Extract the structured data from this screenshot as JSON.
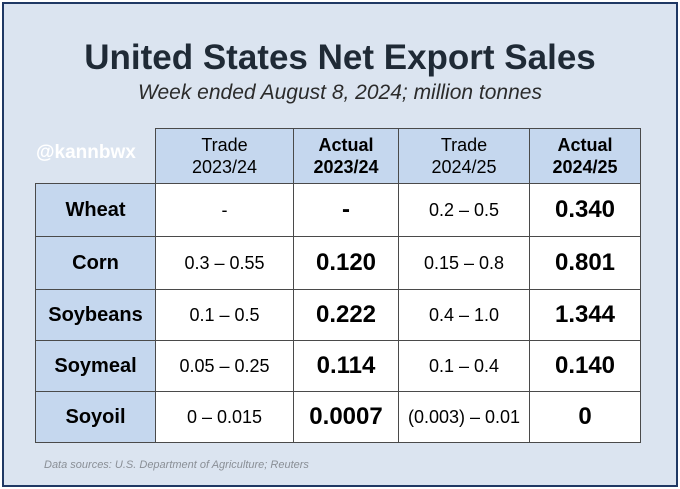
{
  "title": "United States Net Export Sales",
  "subtitle": "Week ended August 8, 2024; million tonnes",
  "watermark": "@kannbwx",
  "source": "Data sources: U.S. Department of Agriculture; Reuters",
  "colors": {
    "background": "#dbe4f0",
    "header_fill": "#c5d7ee",
    "red": "#ff0000",
    "blue": "#2f6fcc"
  },
  "chart_data": {
    "type": "table",
    "columns": [
      {
        "line1": "Trade",
        "line2": "2023/24",
        "bold": false
      },
      {
        "line1": "Actual",
        "line2": "2023/24",
        "bold": true
      },
      {
        "line1": "Trade",
        "line2": "2024/25",
        "bold": false
      },
      {
        "line1": "Actual",
        "line2": "2024/25",
        "bold": true
      }
    ],
    "rows": [
      {
        "label": "Wheat",
        "trade_2023_24": "-",
        "actual_2023_24": "-",
        "trade_2024_25": "0.2 – 0.5",
        "actual_2024_25": "0.340",
        "actual_2023_24_color": "black",
        "actual_2024_25_color": "black"
      },
      {
        "label": "Corn",
        "trade_2023_24": "0.3 – 0.55",
        "actual_2023_24": "0.120",
        "trade_2024_25": "0.15 – 0.8",
        "actual_2024_25": "0.801",
        "actual_2023_24_color": "red",
        "actual_2024_25_color": "blue"
      },
      {
        "label": "Soybeans",
        "trade_2023_24": "0.1 – 0.5",
        "actual_2023_24": "0.222",
        "trade_2024_25": "0.4 – 1.0",
        "actual_2024_25": "1.344",
        "actual_2023_24_color": "black",
        "actual_2024_25_color": "blue"
      },
      {
        "label": "Soymeal",
        "trade_2023_24": "0.05 – 0.25",
        "actual_2023_24": "0.114",
        "trade_2024_25": "0.1 – 0.4",
        "actual_2024_25": "0.140",
        "actual_2023_24_color": "black",
        "actual_2024_25_color": "black"
      },
      {
        "label": "Soyoil",
        "trade_2023_24": "0 – 0.015",
        "actual_2023_24": "0.0007",
        "trade_2024_25": "(0.003) – 0.01",
        "actual_2024_25": "0",
        "actual_2023_24_color": "black",
        "actual_2024_25_color": "black"
      }
    ]
  }
}
